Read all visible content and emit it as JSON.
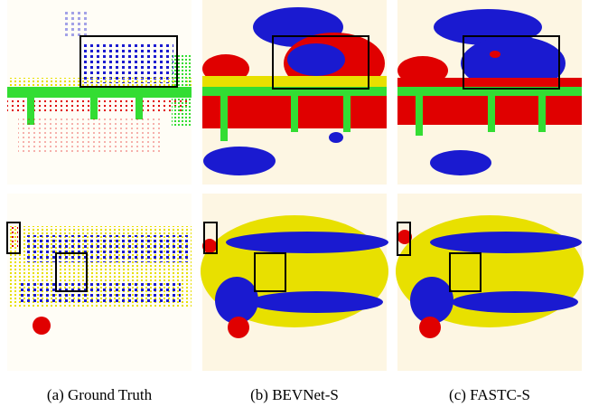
{
  "figure": {
    "captions": [
      "(a) Ground Truth",
      "(b) BEVNet-S",
      "(c) FASTC-S"
    ]
  }
}
